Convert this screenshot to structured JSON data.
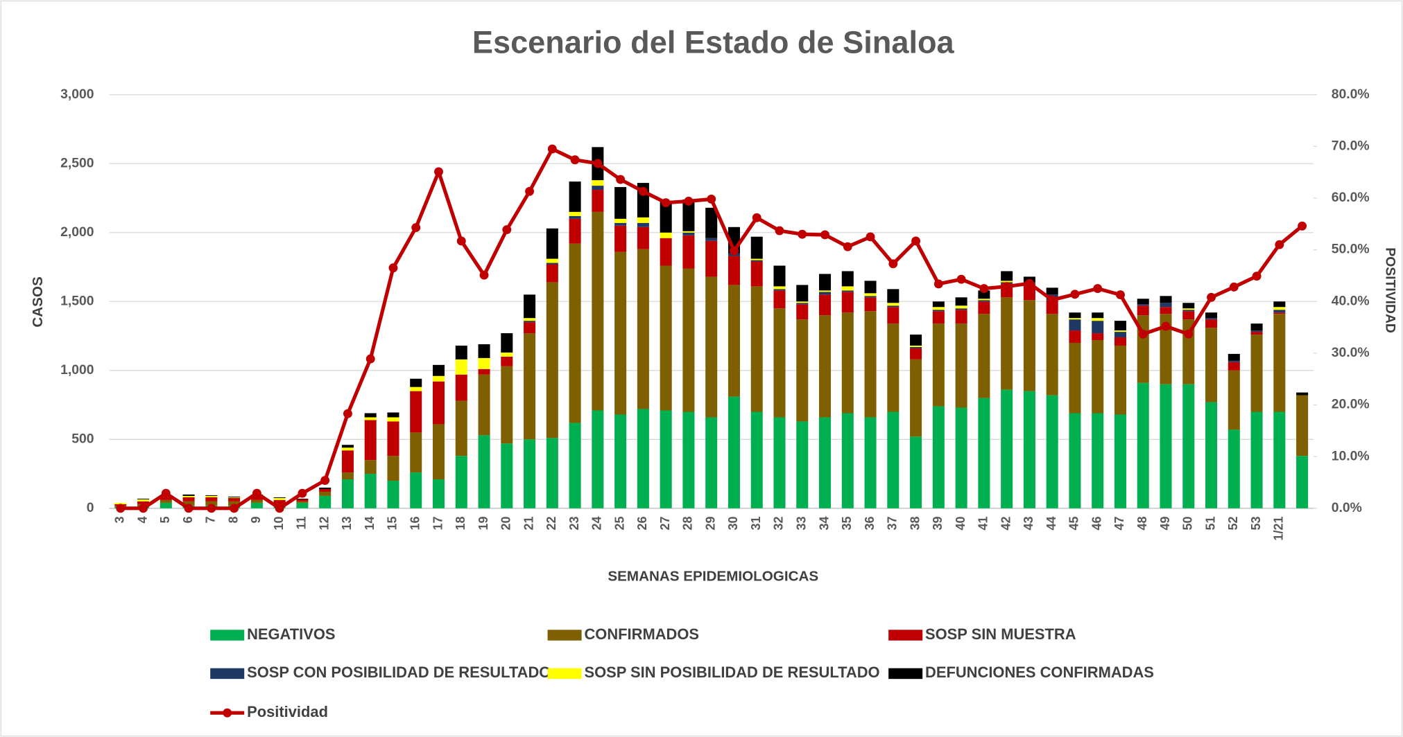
{
  "chart_data": {
    "type": "bar",
    "stacked": true,
    "title": "Escenario del  Estado de Sinaloa",
    "xlabel": "SEMANAS EPIDEMIOLOGICAS",
    "ylabel": "CASOS",
    "y2label": "POSITIVIDAD",
    "categories": [
      "3",
      "4",
      "5",
      "6",
      "7",
      "8",
      "9",
      "10",
      "11",
      "12",
      "13",
      "14",
      "15",
      "16",
      "17",
      "18",
      "19",
      "20",
      "21",
      "22",
      "23",
      "24",
      "25",
      "26",
      "27",
      "28",
      "29",
      "30",
      "31",
      "32",
      "33",
      "34",
      "35",
      "36",
      "37",
      "38",
      "39",
      "40",
      "41",
      "42",
      "43",
      "44",
      "45",
      "46",
      "47",
      "48",
      "49",
      "50",
      "51",
      "52",
      "53",
      "1/21",
      null
    ],
    "ylim": [
      0,
      3000
    ],
    "yticks": [
      0,
      500,
      {
        "value": 1000,
        "label": "1,000"
      },
      {
        "value": 1500,
        "label": "1,500"
      },
      {
        "value": 2000,
        "label": "2,000"
      },
      {
        "value": 2500,
        "label": "2,500"
      },
      {
        "value": 3000,
        "label": "3,000"
      }
    ],
    "y2lim": [
      0,
      80
    ],
    "y2ticks": [
      {
        "value": 0,
        "label": "0.0%"
      },
      {
        "value": 10,
        "label": "10.0%"
      },
      {
        "value": 20,
        "label": "20.0%"
      },
      {
        "value": 30,
        "label": "30.0%"
      },
      {
        "value": 40,
        "label": "40.0%"
      },
      {
        "value": 50,
        "label": "50.0%"
      },
      {
        "value": 60,
        "label": "60.0%"
      },
      {
        "value": 70,
        "label": "70.0%"
      },
      {
        "value": 80,
        "label": "80.0%"
      }
    ],
    "grid": true,
    "series": [
      {
        "name": "NEGATIVOS",
        "color": "#00b050",
        "values": [
          10,
          10,
          40,
          20,
          20,
          20,
          40,
          10,
          40,
          90,
          210,
          250,
          200,
          260,
          210,
          380,
          530,
          470,
          500,
          510,
          620,
          710,
          680,
          720,
          710,
          700,
          660,
          810,
          700,
          660,
          630,
          660,
          690,
          660,
          700,
          520,
          740,
          730,
          800,
          860,
          850,
          820,
          690,
          690,
          680,
          910,
          900,
          900,
          770,
          570,
          700,
          700,
          380
        ]
      },
      {
        "name": "CONFIRMADOS",
        "color": "#7f6000",
        "values": [
          10,
          20,
          20,
          30,
          30,
          30,
          20,
          20,
          10,
          30,
          50,
          100,
          180,
          290,
          400,
          400,
          440,
          560,
          770,
          1130,
          1300,
          1440,
          1180,
          1160,
          1050,
          1040,
          1020,
          810,
          910,
          790,
          740,
          740,
          730,
          770,
          640,
          560,
          600,
          610,
          610,
          670,
          660,
          590,
          510,
          530,
          500,
          490,
          510,
          470,
          540,
          430,
          560,
          710,
          440
        ]
      },
      {
        "name": "SOSP SIN MUESTRA",
        "color": "#c00000",
        "values": [
          10,
          20,
          20,
          30,
          30,
          25,
          25,
          30,
          15,
          20,
          160,
          290,
          250,
          300,
          310,
          190,
          40,
          70,
          80,
          130,
          180,
          160,
          190,
          160,
          200,
          240,
          260,
          210,
          180,
          130,
          110,
          150,
          150,
          100,
          120,
          80,
          90,
          100,
          90,
          100,
          120,
          100,
          90,
          50,
          60,
          70,
          50,
          60,
          60,
          60,
          20,
          10,
          0
        ]
      },
      {
        "name": "SOSP CON POSIBILIDAD DE RESULTADO",
        "color": "#1f3864",
        "values": [
          0,
          0,
          0,
          0,
          0,
          0,
          0,
          0,
          0,
          0,
          0,
          0,
          0,
          0,
          0,
          0,
          0,
          0,
          10,
          10,
          20,
          30,
          20,
          30,
          0,
          20,
          20,
          20,
          10,
          10,
          10,
          20,
          10,
          10,
          10,
          10,
          10,
          10,
          10,
          10,
          10,
          40,
          80,
          90,
          40,
          10,
          30,
          10,
          10,
          10,
          10,
          20,
          0
        ]
      },
      {
        "name": "SOSP SIN POSIBILIDAD DE RESULTADO",
        "color": "#ffff00",
        "values": [
          10,
          15,
          5,
          10,
          10,
          5,
          10,
          15,
          0,
          0,
          20,
          20,
          30,
          30,
          40,
          110,
          80,
          30,
          20,
          30,
          30,
          40,
          30,
          40,
          40,
          10,
          0,
          0,
          10,
          20,
          10,
          10,
          30,
          20,
          20,
          10,
          20,
          20,
          10,
          10,
          0,
          0,
          10,
          20,
          10,
          0,
          0,
          10,
          0,
          0,
          0,
          20,
          0
        ]
      },
      {
        "name": "DEFUNCIONES CONFIRMADAS",
        "color": "#000000",
        "values": [
          0,
          5,
          5,
          10,
          5,
          5,
          5,
          5,
          5,
          10,
          20,
          30,
          35,
          60,
          80,
          100,
          100,
          140,
          170,
          220,
          220,
          240,
          230,
          250,
          230,
          230,
          220,
          190,
          160,
          150,
          120,
          120,
          110,
          90,
          100,
          80,
          40,
          60,
          60,
          70,
          40,
          50,
          40,
          40,
          70,
          40,
          50,
          40,
          40,
          50,
          50,
          40,
          20
        ]
      },
      {
        "name": "Positividad",
        "type": "line",
        "axis": "y2",
        "color": "#c00000",
        "values": [
          0,
          0,
          2.9,
          0,
          0,
          0,
          2.9,
          0,
          2.9,
          5.4,
          18.3,
          28.9,
          46.5,
          54.3,
          65.1,
          51.7,
          45.1,
          53.9,
          61.3,
          69.5,
          67.4,
          66.7,
          63.6,
          61.3,
          59.1,
          59.4,
          59.8,
          49.8,
          56.2,
          53.7,
          53.0,
          52.9,
          50.6,
          52.5,
          47.3,
          51.7,
          43.4,
          44.3,
          42.5,
          42.9,
          43.5,
          40.3,
          41.4,
          42.5,
          41.3,
          33.7,
          35.2,
          33.7,
          40.8,
          42.8,
          44.9,
          51.0,
          54.6
        ]
      }
    ]
  }
}
